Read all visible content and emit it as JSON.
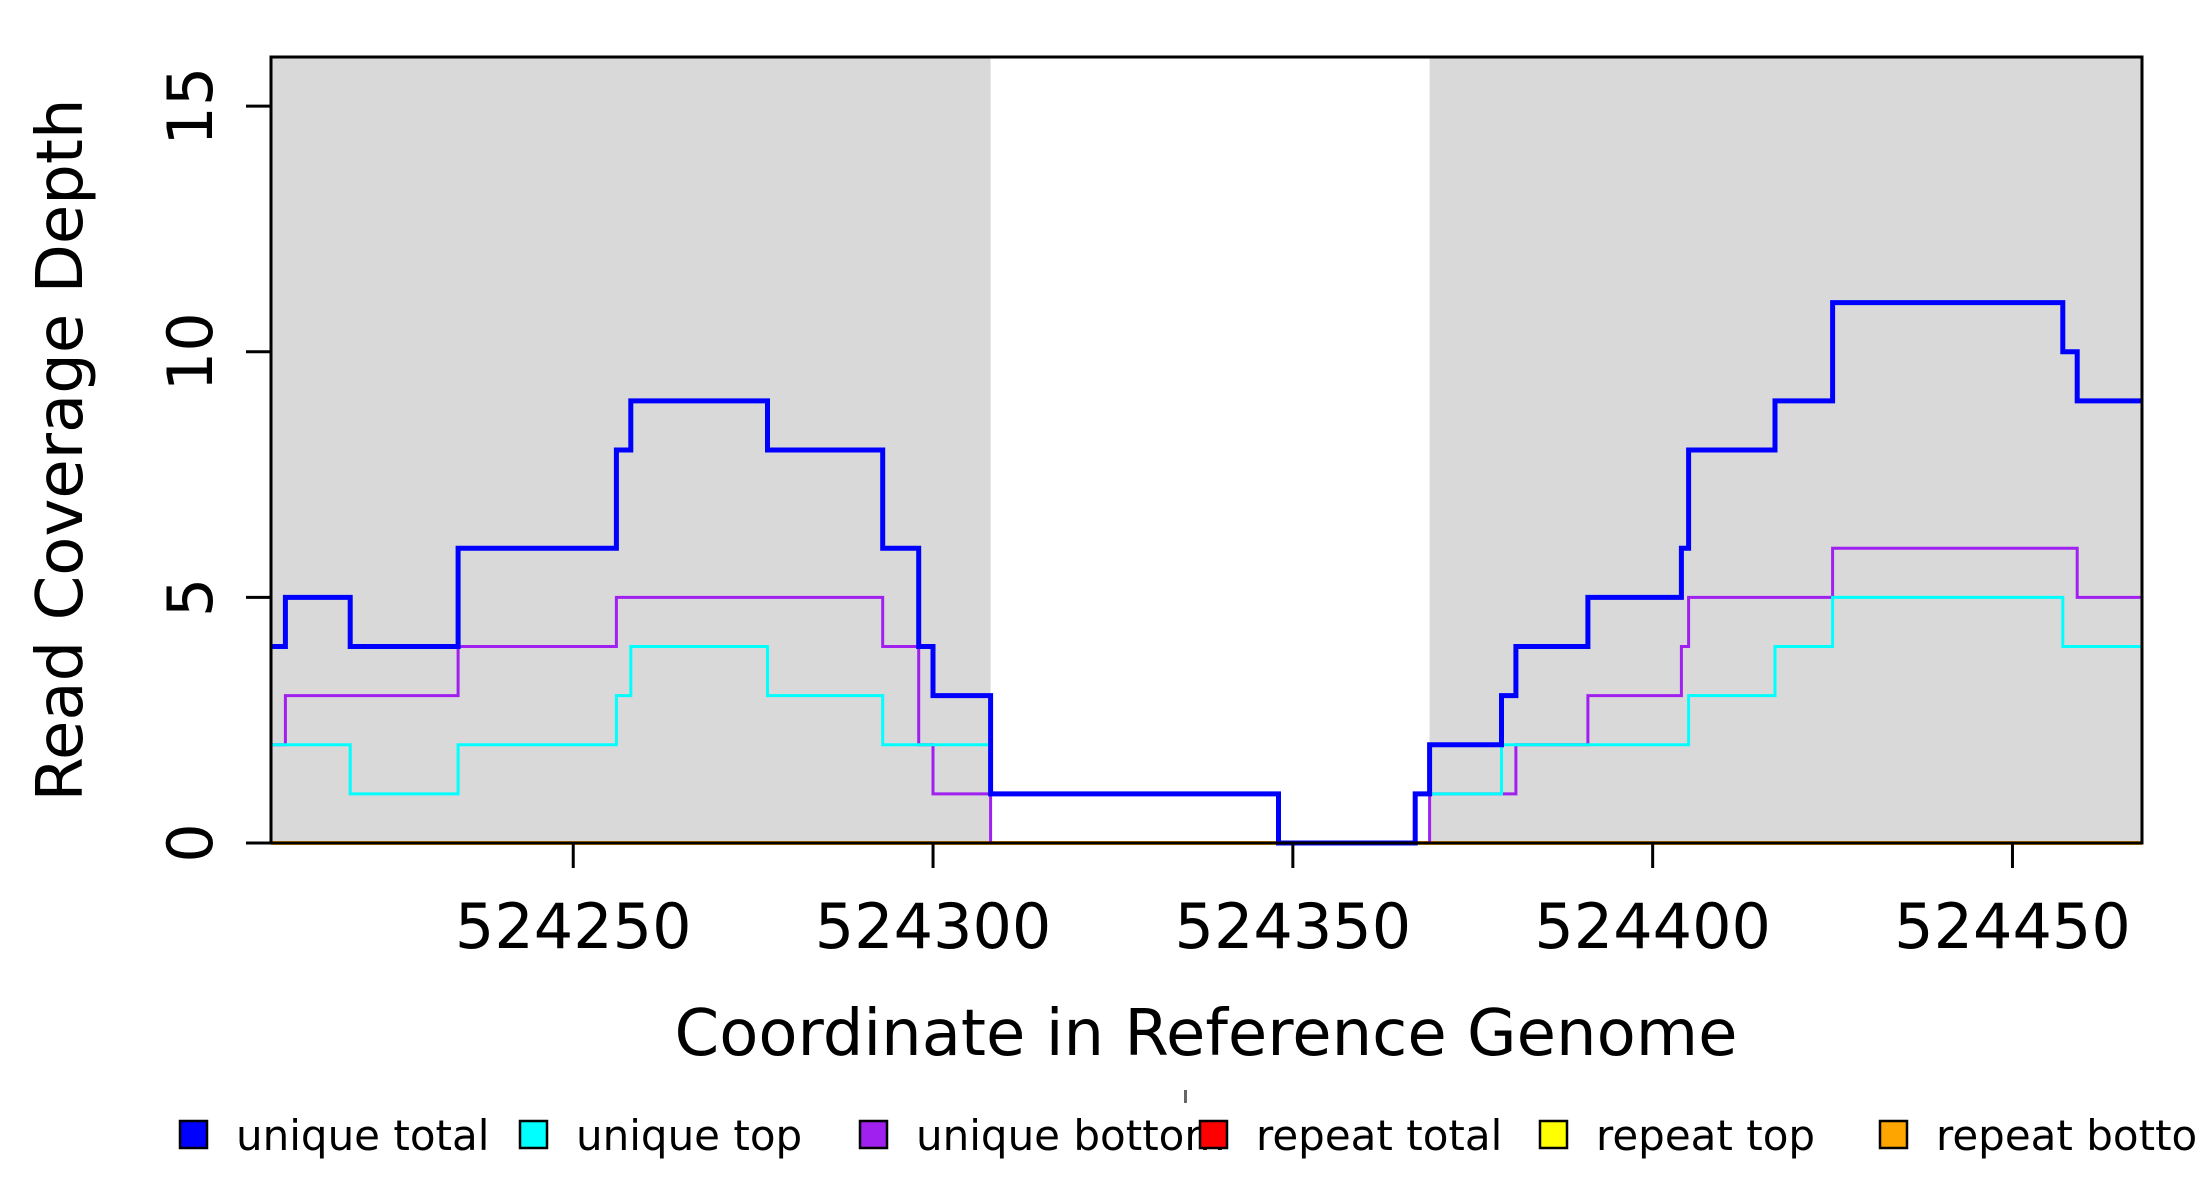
{
  "figure": {
    "background": "#ffffff"
  },
  "chart_data": {
    "type": "line",
    "subtype": "step-post",
    "title": "",
    "xlabel": "Coordinate in Reference Genome",
    "ylabel": "Read Coverage Depth",
    "xlim": [
      524208,
      524468
    ],
    "ylim": [
      0,
      16
    ],
    "x_ticks": [
      524250,
      524300,
      524350,
      524400,
      524450
    ],
    "y_ticks": [
      0,
      5,
      10,
      15
    ],
    "grid": false,
    "plot_background": "#ffffff",
    "shaded_regions": [
      {
        "from": 524208,
        "to": 524308,
        "color": "#D9D9D9"
      },
      {
        "from": 524369,
        "to": 524468,
        "color": "#D9D9D9"
      }
    ],
    "series": [
      {
        "name": "unique total",
        "color": "#0000FF",
        "width": 5,
        "x": [
          524208,
          524210,
          524219,
          524234,
          524256,
          524258,
          524277,
          524293,
          524298,
          524300,
          524308,
          524348,
          524367,
          524369,
          524379,
          524381,
          524391,
          524404,
          524405,
          524417,
          524425,
          524457,
          524459
        ],
        "values": [
          4,
          5,
          4,
          6,
          8,
          9,
          8,
          6,
          4,
          3,
          1,
          0,
          1,
          2,
          3,
          4,
          5,
          6,
          8,
          9,
          11,
          10,
          9
        ]
      },
      {
        "name": "unique top",
        "color": "#00FFFF",
        "width": 3,
        "x": [
          524208,
          524219,
          524234,
          524256,
          524258,
          524277,
          524293,
          524308,
          524348,
          524367,
          524379,
          524405,
          524417,
          524425,
          524457
        ],
        "values": [
          2,
          1,
          2,
          3,
          4,
          3,
          2,
          1,
          0,
          1,
          2,
          3,
          4,
          5,
          4
        ]
      },
      {
        "name": "unique bottom",
        "color": "#A020F0",
        "width": 3,
        "x": [
          524208,
          524210,
          524234,
          524256,
          524293,
          524298,
          524300,
          524308,
          524369,
          524381,
          524391,
          524404,
          524405,
          524425,
          524459
        ],
        "values": [
          2,
          3,
          4,
          5,
          4,
          2,
          1,
          0,
          1,
          2,
          3,
          4,
          5,
          6,
          5
        ]
      },
      {
        "name": "repeat total",
        "color": "#FF0000",
        "width": 3,
        "x": [
          524208
        ],
        "values": [
          0
        ]
      },
      {
        "name": "repeat top",
        "color": "#FFFF00",
        "width": 3,
        "x": [
          524208
        ],
        "values": [
          0
        ]
      },
      {
        "name": "repeat bottom",
        "color": "#FFA500",
        "width": 4,
        "x": [
          524208
        ],
        "values": [
          0
        ]
      }
    ],
    "draw_order": [
      3,
      4,
      5,
      2,
      1,
      0
    ],
    "legend": {
      "position": "bottom",
      "entries": [
        {
          "label": "unique total",
          "color": "#0000FF"
        },
        {
          "label": "unique top",
          "color": "#00FFFF"
        },
        {
          "label": "unique bottom",
          "color": "#A020F0"
        },
        {
          "label": "repeat total",
          "color": "#FF0000"
        },
        {
          "label": "repeat top",
          "color": "#FFFF00"
        },
        {
          "label": "repeat bottom",
          "color": "#FFA500"
        }
      ]
    }
  }
}
